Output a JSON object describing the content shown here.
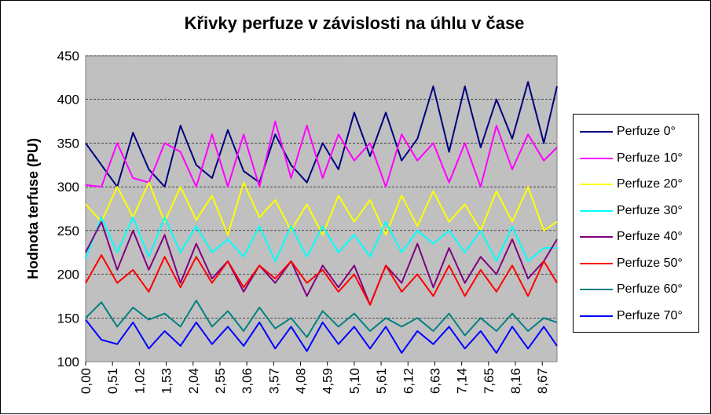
{
  "chart_data": {
    "type": "line",
    "title": "Křivky perfuze v závislosti na úhlu v čase",
    "xlabel": "",
    "ylabel": "Hodnota terfuse (PU)",
    "ylim": [
      100,
      450
    ],
    "yticks": [
      "100",
      "150",
      "200",
      "250",
      "300",
      "350",
      "400",
      "450"
    ],
    "x_tick_labels": [
      "0,00",
      "0,51",
      "1,02",
      "1,53",
      "2,04",
      "2,55",
      "3,06",
      "3,57",
      "4,08",
      "4,59",
      "5,10",
      "5,61",
      "6,12",
      "6,63",
      "7,14",
      "7,65",
      "8,16",
      "8,67"
    ],
    "x": [
      0.0,
      0.3,
      0.6,
      0.9,
      1.2,
      1.5,
      1.8,
      2.1,
      2.4,
      2.7,
      3.0,
      3.3,
      3.6,
      3.9,
      4.2,
      4.5,
      4.8,
      5.1,
      5.4,
      5.7,
      6.0,
      6.3,
      6.6,
      6.9,
      7.2,
      7.5,
      7.8,
      8.1,
      8.4,
      8.7,
      8.95
    ],
    "grid": true,
    "plot_background": "#c0c0c0",
    "legend_position": "right",
    "series": [
      {
        "name": "Perfuze 0°",
        "color": "#000080",
        "values": [
          350,
          325,
          300,
          362,
          320,
          300,
          370,
          325,
          310,
          365,
          318,
          305,
          360,
          325,
          305,
          350,
          320,
          385,
          335,
          385,
          330,
          355,
          415,
          340,
          415,
          345,
          400,
          355,
          420,
          350,
          415
        ]
      },
      {
        "name": "Perfuze 10°",
        "color": "#ff00ff",
        "values": [
          302,
          300,
          350,
          310,
          305,
          350,
          340,
          300,
          360,
          300,
          360,
          300,
          375,
          310,
          370,
          310,
          360,
          330,
          350,
          300,
          360,
          330,
          350,
          305,
          350,
          300,
          370,
          320,
          360,
          330,
          345
        ]
      },
      {
        "name": "Perfuze 20°",
        "color": "#ffff00",
        "values": [
          280,
          260,
          300,
          265,
          305,
          260,
          300,
          262,
          290,
          245,
          305,
          265,
          285,
          250,
          280,
          245,
          290,
          260,
          285,
          245,
          290,
          255,
          295,
          260,
          280,
          250,
          295,
          260,
          300,
          250,
          260
        ]
      },
      {
        "name": "Perfuze 30°",
        "color": "#00ffff",
        "values": [
          218,
          265,
          225,
          265,
          220,
          265,
          225,
          255,
          225,
          240,
          220,
          255,
          215,
          255,
          220,
          255,
          225,
          245,
          220,
          260,
          225,
          250,
          235,
          250,
          225,
          250,
          215,
          255,
          215,
          230,
          230
        ]
      },
      {
        "name": "Perfuze 40°",
        "color": "#800080",
        "values": [
          225,
          260,
          205,
          250,
          205,
          245,
          190,
          235,
          195,
          215,
          180,
          210,
          190,
          215,
          175,
          210,
          185,
          210,
          165,
          210,
          190,
          235,
          185,
          230,
          190,
          220,
          200,
          240,
          195,
          215,
          240
        ]
      },
      {
        "name": "Perfuze 50°",
        "color": "#ff0000",
        "values": [
          190,
          222,
          190,
          205,
          180,
          220,
          185,
          220,
          190,
          215,
          185,
          210,
          195,
          215,
          190,
          205,
          180,
          200,
          165,
          210,
          180,
          200,
          175,
          210,
          175,
          205,
          180,
          210,
          175,
          215,
          190
        ]
      },
      {
        "name": "Perfuze 60°",
        "color": "#008080",
        "values": [
          150,
          168,
          140,
          162,
          148,
          155,
          140,
          170,
          140,
          158,
          135,
          162,
          138,
          150,
          128,
          158,
          140,
          155,
          135,
          150,
          140,
          150,
          135,
          155,
          130,
          150,
          135,
          155,
          135,
          150,
          145
        ]
      },
      {
        "name": "Perfuze 70°",
        "color": "#0000ff",
        "values": [
          148,
          125,
          120,
          145,
          115,
          135,
          118,
          145,
          120,
          140,
          118,
          145,
          115,
          140,
          112,
          145,
          120,
          140,
          115,
          140,
          110,
          135,
          120,
          140,
          115,
          135,
          110,
          140,
          115,
          140,
          118
        ]
      }
    ]
  }
}
